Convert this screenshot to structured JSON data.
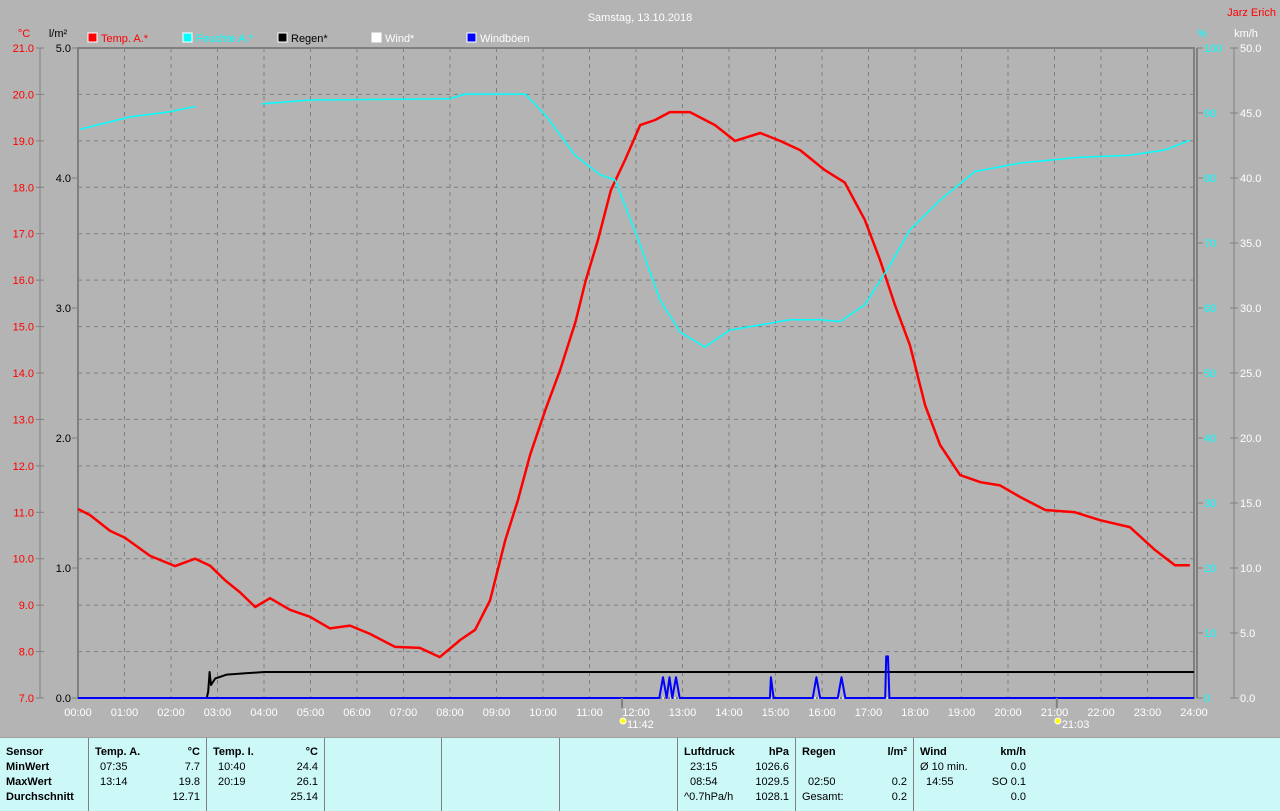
{
  "title": "Samstag, 13.10.2018",
  "author": "Jarz Erich",
  "colors": {
    "background": "#b4b4b4",
    "temp": "#ff0000",
    "humidity": "#00ffff",
    "rain": "#000000",
    "wind": "#ffffff",
    "gusts": "#0000ff",
    "stats_bg": "#ccf8f8"
  },
  "chart_data": {
    "type": "line",
    "title": "Samstag, 13.10.2018",
    "grid": true,
    "legend_placement": "top",
    "x_ticks": [
      "00:00",
      "01:00",
      "02:00",
      "03:00",
      "04:00",
      "05:00",
      "06:00",
      "07:00",
      "08:00",
      "09:00",
      "10:00",
      "11:00",
      "12:00",
      "13:00",
      "14:00",
      "15:00",
      "16:00",
      "17:00",
      "18:00",
      "19:00",
      "20:00",
      "21:00",
      "22:00",
      "23:00",
      "24:00"
    ],
    "axes": {
      "temp": {
        "unit": "°C",
        "range": [
          7,
          21
        ],
        "ticks": [
          "21.0",
          "20.0",
          "19.0",
          "18.0",
          "17.0",
          "16.0",
          "15.0",
          "14.0",
          "13.0",
          "12.0",
          "11.0",
          "10.0",
          "9.0",
          "8.0",
          "7.0"
        ]
      },
      "rain": {
        "unit": "l/m²",
        "range": [
          0,
          5
        ],
        "ticks": [
          "5.0",
          "4.0",
          "3.0",
          "2.0",
          "1.0",
          "0.0"
        ]
      },
      "humidity": {
        "unit": "%",
        "range": [
          0,
          100
        ],
        "ticks": [
          "100",
          "90",
          "80",
          "70",
          "60",
          "50",
          "40",
          "30",
          "20",
          "10",
          "0"
        ]
      },
      "wind": {
        "unit": "km/h",
        "range": [
          0,
          50
        ],
        "ticks": [
          "50.0",
          "45.0",
          "40.0",
          "35.0",
          "30.0",
          "25.0",
          "20.0",
          "15.0",
          "10.0",
          "5.0",
          "0.0"
        ]
      }
    },
    "series": [
      {
        "name": "Temp. A.*",
        "axis": "temp",
        "color": "#ff0000",
        "x": [
          0,
          0.26,
          0.69,
          1.01,
          1.55,
          2.09,
          2.3,
          2.52,
          2.84,
          3.16,
          3.48,
          3.81,
          4.13,
          4.56,
          4.99,
          5.42,
          5.85,
          6.28,
          6.82,
          7.35,
          7.78,
          8.22,
          8.54,
          8.86,
          9.19,
          9.46,
          9.72,
          10.05,
          10.37,
          10.7,
          10.92,
          11.18,
          11.46,
          11.77,
          12.09,
          12.41,
          12.73,
          13.16,
          13.7,
          14.13,
          14.67,
          15.1,
          15.53,
          16.06,
          16.49,
          16.92,
          17.25,
          17.57,
          17.89,
          18.22,
          18.54,
          18.97,
          19.4,
          19.83,
          20.26,
          20.8,
          21.44,
          21.98,
          22.62,
          23.16,
          23.59,
          23.91
        ],
        "values": [
          11.07,
          10.94,
          10.6,
          10.45,
          10.06,
          9.84,
          9.92,
          10.0,
          9.85,
          9.54,
          9.28,
          8.96,
          9.15,
          8.9,
          8.75,
          8.5,
          8.56,
          8.38,
          8.1,
          8.08,
          7.88,
          8.25,
          8.47,
          9.1,
          10.4,
          11.26,
          12.23,
          13.2,
          14.07,
          15.1,
          16.0,
          16.86,
          17.94,
          18.6,
          19.34,
          19.45,
          19.62,
          19.62,
          19.34,
          19.0,
          19.17,
          19.0,
          18.8,
          18.37,
          18.1,
          17.3,
          16.43,
          15.46,
          14.6,
          13.3,
          12.45,
          11.8,
          11.65,
          11.58,
          11.33,
          11.05,
          11.0,
          10.83,
          10.68,
          10.19,
          9.86,
          9.86
        ]
      },
      {
        "name": "Feuchte A.*",
        "axis": "humidity",
        "color": "#00ffff",
        "segments": [
          {
            "x": [
              0.04,
              1.12,
              1.98,
              2.52
            ],
            "values": [
              87.5,
              89.4,
              90.2,
              91.0
            ]
          },
          {
            "x": [
              3.96,
              4.99,
              8.0,
              8.32,
              9.62,
              10.05,
              10.69,
              11.23,
              11.55,
              12.09,
              12.52,
              12.95,
              13.48,
              14.02,
              14.67,
              15.31,
              15.96,
              16.39,
              16.92,
              17.46,
              17.89,
              18.54,
              19.29,
              20.26,
              21.55,
              22.62,
              23.37,
              23.91
            ],
            "values": [
              91.4,
              92.0,
              92.2,
              92.9,
              92.9,
              89.7,
              83.5,
              80.5,
              79.7,
              69.7,
              61.2,
              56.3,
              54.0,
              56.6,
              57.4,
              58.2,
              58.2,
              57.9,
              60.5,
              66.6,
              72.0,
              76.6,
              81.0,
              82.3,
              83.2,
              83.5,
              84.3,
              85.8
            ]
          }
        ]
      },
      {
        "name": "Regen*",
        "axis": "rain",
        "color": "#000000",
        "x": [
          0,
          2.77,
          2.8,
          2.83,
          2.86,
          2.95,
          3.2,
          3.6,
          4.0,
          24.0
        ],
        "values": [
          0,
          0,
          0.05,
          0.2,
          0.1,
          0.15,
          0.18,
          0.19,
          0.2,
          0.2
        ]
      },
      {
        "name": "Wind*",
        "axis": "wind",
        "color": "#ffffff",
        "x": [
          0,
          24
        ],
        "values": [
          0,
          0
        ]
      },
      {
        "name": "Windböen",
        "axis": "wind",
        "color": "#0000ff",
        "x": [
          0,
          12.5,
          12.58,
          12.66,
          12.72,
          12.78,
          12.86,
          12.94,
          14.88,
          14.9,
          14.96,
          15.0,
          15.8,
          15.88,
          15.96,
          16.34,
          16.42,
          16.5,
          17.36,
          17.38,
          17.42,
          17.45,
          24
        ],
        "values": [
          0,
          0,
          1.6,
          0,
          1.6,
          0,
          1.6,
          0,
          0,
          1.6,
          0,
          0,
          0,
          1.6,
          0,
          0,
          1.6,
          0,
          0,
          3.2,
          3.2,
          0,
          0
        ]
      }
    ],
    "annotations": [
      {
        "label": "11:42",
        "at": 11.7,
        "icon": "sunrise-icon"
      },
      {
        "label": "21:03",
        "at": 21.05,
        "icon": "sunset-icon"
      }
    ]
  },
  "stats": {
    "sensor": {
      "header": "Sensor",
      "rows": [
        "MinWert",
        "MaxWert",
        "Durchschnitt"
      ]
    },
    "temp_a": {
      "header": "Temp. A.",
      "unit": "°C",
      "min_time": "07:35",
      "min": "7.7",
      "max_time": "13:14",
      "max": "19.8",
      "avg": "12.71"
    },
    "temp_i": {
      "header": "Temp. I.",
      "unit": "°C",
      "min_time": "10:40",
      "min": "24.4",
      "max_time": "20:19",
      "max": "26.1",
      "avg": "25.14"
    },
    "pressure": {
      "header": "Luftdruck",
      "unit": "hPa",
      "min_time": "23:15",
      "min": "1026.6",
      "max_time": "08:54",
      "max": "1029.5",
      "trend": "^0.7hPa/h",
      "avg": "1028.1"
    },
    "rain": {
      "header": "Regen",
      "unit": "l/m²",
      "max_time": "02:50",
      "max": "0.2",
      "total_label": "Gesamt:",
      "total": "0.2"
    },
    "wind": {
      "header": "Wind",
      "unit": "km/h",
      "avg_label": "Ø 10 min.",
      "avg": "0.0",
      "max_time": "14:55",
      "max": "SO 0.1",
      "mean": "0.0"
    }
  }
}
